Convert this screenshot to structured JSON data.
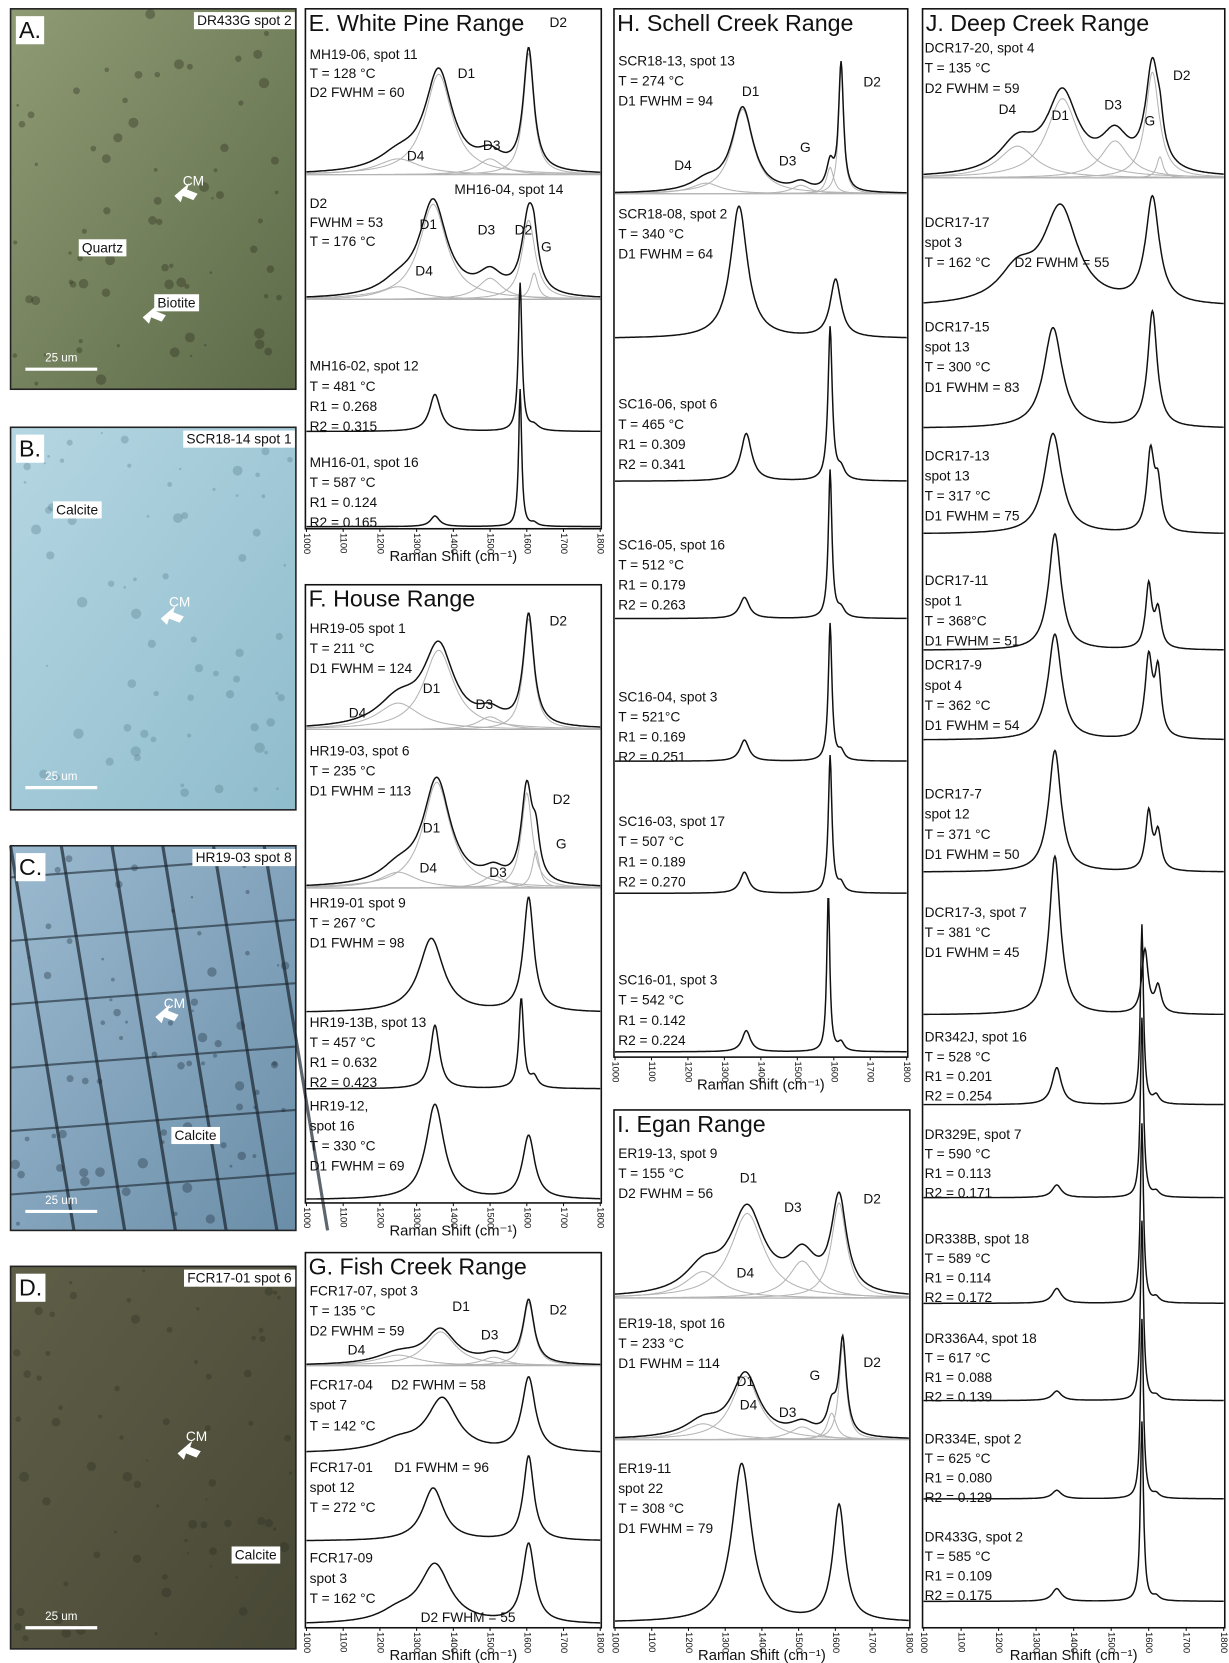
{
  "xlim": [
    1000,
    1800
  ],
  "xticks": [
    1000,
    1100,
    1200,
    1300,
    1400,
    1500,
    1600,
    1700,
    1800
  ],
  "photos": [
    {
      "letter": "A.",
      "sample": "DR433G spot 2",
      "labels": [
        "CM",
        "Quartz",
        "Biotite"
      ],
      "scale": "25 um"
    },
    {
      "letter": "B.",
      "sample": "SCR18-14 spot 1",
      "labels": [
        "Calcite",
        "CM"
      ],
      "scale": "25 um"
    },
    {
      "letter": "C.",
      "sample": "HR19-03 spot 8",
      "labels": [
        "CM",
        "Calcite"
      ],
      "scale": "25 um"
    },
    {
      "letter": "D.",
      "sample": "FCR17-01 spot 6",
      "labels": [
        "CM",
        "Calcite"
      ],
      "scale": "25 um"
    }
  ],
  "panels": [
    {
      "title": "E. White Pine Range",
      "x_label": "Raman Shift (cm⁻¹)",
      "spectra": [
        {
          "labels": [
            "MH19-06, spot 11",
            "T = 128 °C",
            "D2 FWHM = 60",
            "D1",
            "D2",
            "D3",
            "D4"
          ]
        },
        {
          "labels": [
            "MH16-04, spot 14",
            "D2",
            "FWHM = 53",
            "T = 176 °C",
            "D1",
            "D3",
            "D2",
            "G",
            "D4"
          ]
        },
        {
          "labels": [
            "MH16-02, spot 12",
            "T = 481 °C",
            "R1 = 0.268",
            "R2 = 0.315"
          ]
        },
        {
          "labels": [
            "MH16-01, spot 16",
            "T = 587 °C",
            "R1 = 0.124",
            "R2 = 0.165"
          ]
        }
      ]
    },
    {
      "title": "F. House Range",
      "x_label": "Raman Shift (cm⁻¹)",
      "spectra": [
        {
          "labels": [
            "HR19-05 spot 1",
            "T = 211 °C",
            "D1 FWHM = 124",
            "D2",
            "D1",
            "D3",
            "D4"
          ]
        },
        {
          "labels": [
            "HR19-03, spot 6",
            "T = 235 °C",
            "D1 FWHM = 113",
            "D1",
            "D2",
            "D3",
            "G",
            "D4"
          ]
        },
        {
          "labels": [
            "HR19-01 spot 9",
            "T = 267 °C",
            "D1 FWHM = 98"
          ]
        },
        {
          "labels": [
            "HR19-13B, spot 13",
            "T = 457 °C",
            "R1 = 0.632",
            "R2 = 0.423"
          ]
        },
        {
          "labels": [
            "HR19-12,",
            "spot 16",
            "T = 330 °C",
            "D1 FWHM = 69"
          ]
        }
      ]
    },
    {
      "title": "G. Fish Creek Range",
      "x_label": "Raman Shift (cm⁻¹)",
      "spectra": [
        {
          "labels": [
            "FCR17-07, spot 3",
            "T = 135 °C",
            "D2 FWHM = 59",
            "D1",
            "D2",
            "D3",
            "D4"
          ]
        },
        {
          "labels": [
            "FCR17-04",
            "D2 FWHM = 58",
            "spot 7",
            "T = 142 °C"
          ]
        },
        {
          "labels": [
            "FCR17-01",
            "D1 FWHM = 96",
            "spot 12",
            "T = 272 °C"
          ]
        },
        {
          "labels": [
            "FCR17-09",
            "spot 3",
            "T = 162 °C",
            "D2 FWHM = 55"
          ]
        }
      ]
    },
    {
      "title": "H. Schell Creek Range",
      "x_label": "Raman Shift (cm⁻¹)",
      "spectra": [
        {
          "labels": [
            "SCR18-13, spot 13",
            "T = 274 °C",
            "D1 FWHM = 94",
            "D1",
            "D2",
            "D4",
            "D3",
            "G"
          ]
        },
        {
          "labels": [
            "SCR18-08, spot 2",
            "T = 340 °C",
            "D1 FWHM = 64"
          ]
        },
        {
          "labels": [
            "SC16-06, spot 6",
            "T = 465 °C",
            "R1 = 0.309",
            "R2 = 0.341"
          ]
        },
        {
          "labels": [
            "SC16-05, spot 16",
            "T = 512 °C",
            "R1 = 0.179",
            "R2 = 0.263"
          ]
        },
        {
          "labels": [
            "SC16-04, spot 3",
            "T = 521°C",
            "R1 = 0.169",
            "R2 = 0.251"
          ]
        },
        {
          "labels": [
            "SC16-03, spot 17",
            "T = 507 °C",
            "R1 = 0.189",
            "R2 = 0.270"
          ]
        },
        {
          "labels": [
            "SC16-01, spot 3",
            "T = 542 °C",
            "R1 = 0.142",
            "R2 = 0.224"
          ]
        }
      ]
    },
    {
      "title": "I. Egan Range",
      "x_label": "Raman Shift (cm⁻¹)",
      "spectra": [
        {
          "labels": [
            "ER19-13, spot 9",
            "T = 155 °C",
            "D2 FWHM = 56",
            "D1",
            "D2",
            "D3",
            "D4"
          ]
        },
        {
          "labels": [
            "ER19-18, spot 16",
            "T = 233 °C",
            "D1 FWHM = 114",
            "D1",
            "D2",
            "D3",
            "G",
            "D4"
          ]
        },
        {
          "labels": [
            "ER19-11",
            "spot 22",
            "T = 308 °C",
            "D1 FWHM = 79"
          ]
        }
      ]
    },
    {
      "title": "J. Deep Creek Range",
      "x_label": "Raman Shift (cm⁻¹)",
      "spectra": [
        {
          "labels": [
            "DCR17-20, spot 4",
            "T = 135 °C",
            "D2 FWHM = 59",
            "D4",
            "D1",
            "D3",
            "D2",
            "G"
          ]
        },
        {
          "labels": [
            "DCR17-17",
            "spot 3",
            "T = 162 °C",
            "D2 FWHM = 55"
          ]
        },
        {
          "labels": [
            "DCR17-15",
            "spot 13",
            "T = 300 °C",
            "D1 FWHM = 83"
          ]
        },
        {
          "labels": [
            "DCR17-13",
            "spot 13",
            "T = 317 °C",
            "D1 FWHM = 75"
          ]
        },
        {
          "labels": [
            "DCR17-11",
            "spot 1",
            "T = 368°C",
            "D1 FWHM = 51"
          ]
        },
        {
          "labels": [
            "DCR17-9",
            "spot 4",
            "T = 362 °C",
            "D1 FWHM = 54"
          ]
        },
        {
          "labels": [
            "DCR17-7",
            "spot 12",
            "T = 371 °C",
            "D1 FWHM = 50"
          ]
        },
        {
          "labels": [
            "DCR17-3, spot 7",
            "T = 381 °C",
            "D1 FWHM = 45"
          ]
        },
        {
          "labels": [
            "DR342J, spot 16",
            "T = 528 °C",
            "R1 = 0.201",
            "R2 = 0.254"
          ]
        },
        {
          "labels": [
            "DR329E, spot 7",
            "T = 590 °C",
            "R1 = 0.113",
            "R2 = 0.171"
          ]
        },
        {
          "labels": [
            "DR338B, spot 18",
            "T = 589 °C",
            "R1 = 0.114",
            "R2 = 0.172"
          ]
        },
        {
          "labels": [
            "DR336A4, spot 18",
            "T = 617 °C",
            "R1 = 0.088",
            "R2 = 0.139"
          ]
        },
        {
          "labels": [
            "DR334E, spot 2",
            "T = 625 °C",
            "R1 = 0.080",
            "R2 = 0.129"
          ]
        },
        {
          "labels": [
            "DR433G, spot 2",
            "T = 585 °C",
            "R1 = 0.109",
            "R2 = 0.175"
          ]
        }
      ]
    }
  ]
}
